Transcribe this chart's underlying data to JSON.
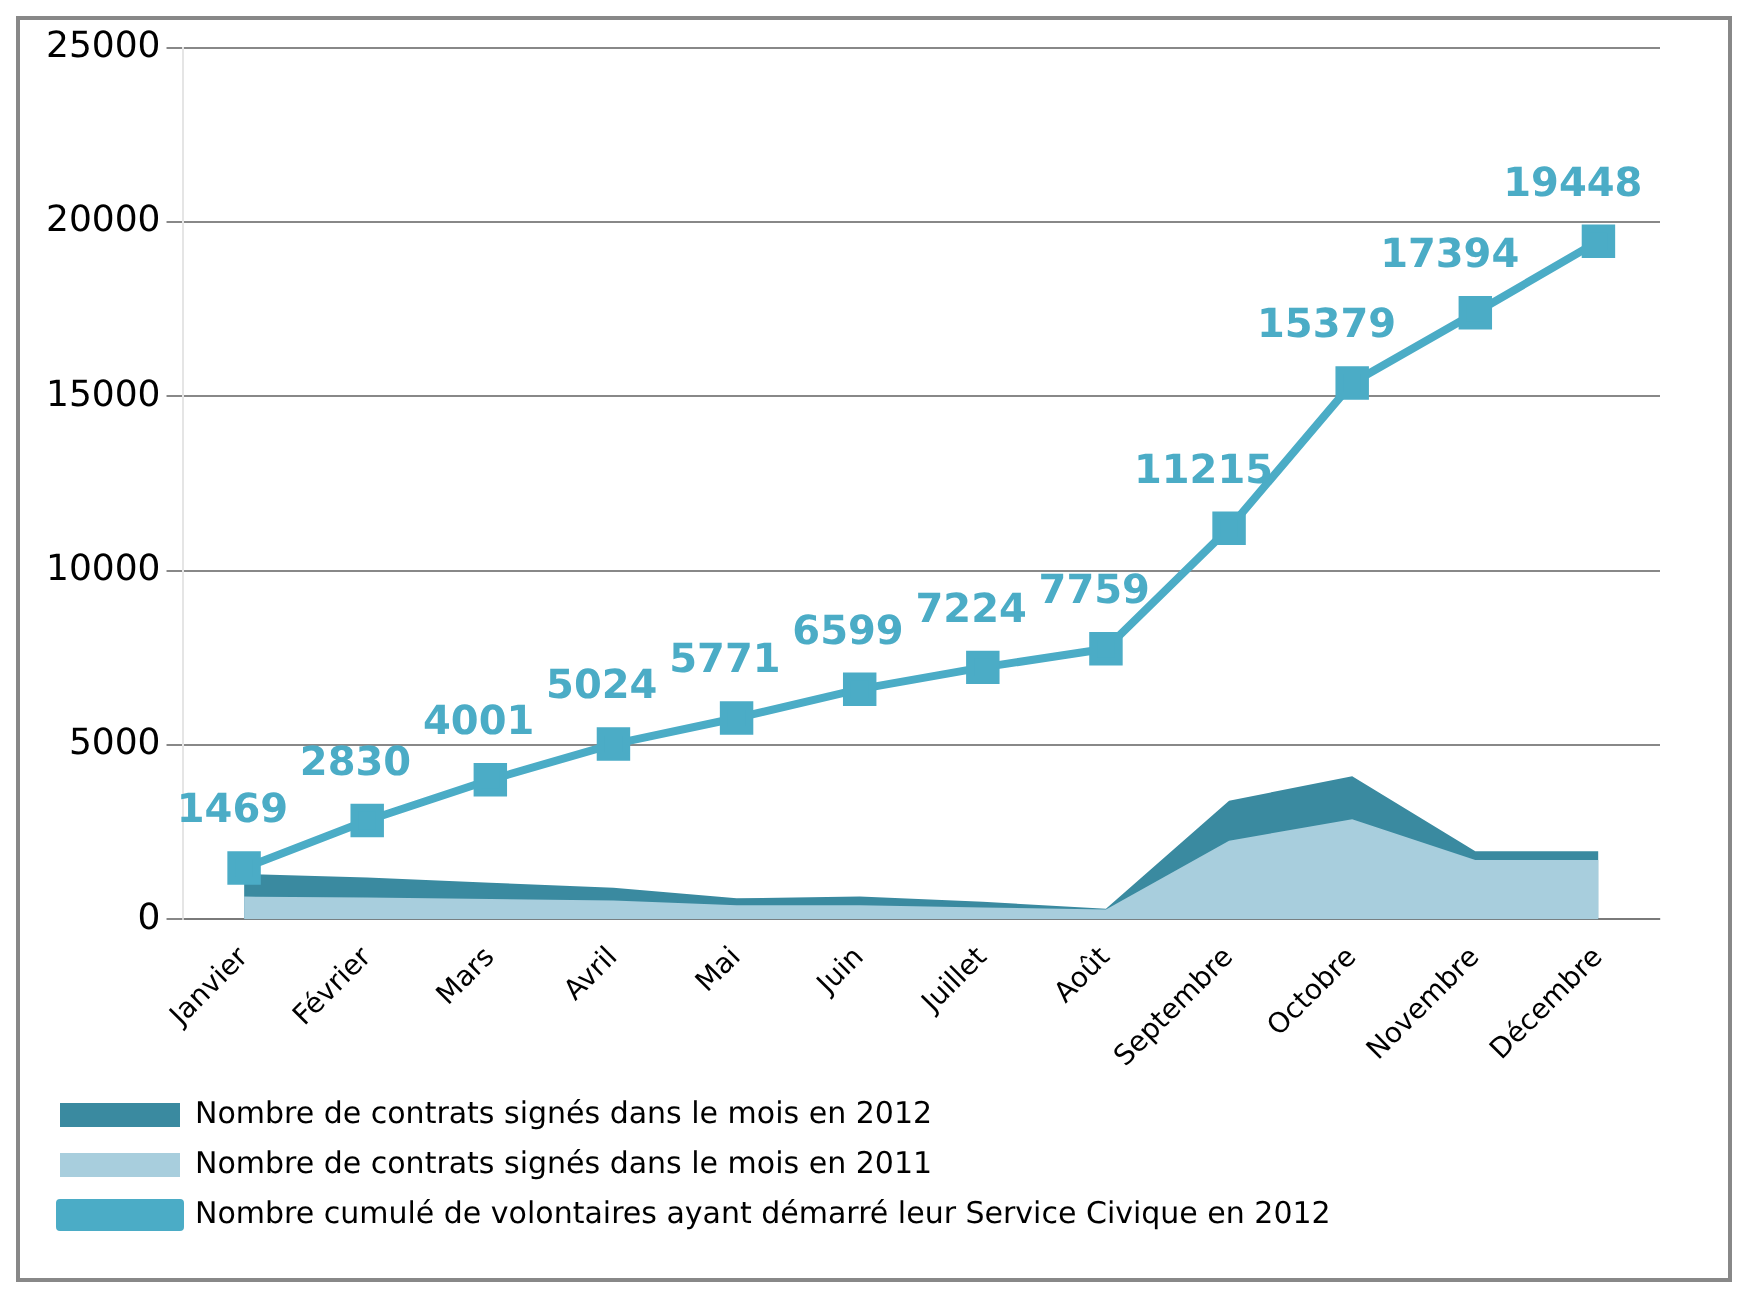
{
  "chart_data": {
    "type": "area",
    "categories": [
      "Janvier",
      "Février",
      "Mars",
      "Avril",
      "Mai",
      "Juin",
      "Juillet",
      "Août",
      "Septembre",
      "Octobre",
      "Novembre",
      "Décembre"
    ],
    "series": [
      {
        "name": "Nombre de contrats signés dans le mois en 2012",
        "color": "#3a8aa0",
        "values": [
          1300,
          1200,
          1050,
          900,
          600,
          650,
          500,
          300,
          3400,
          4100,
          1950,
          1950
        ]
      },
      {
        "name": "Nombre de contrats signés dans le mois en 2011",
        "color": "#a8cedd",
        "values": [
          650,
          620,
          580,
          540,
          400,
          400,
          340,
          280,
          2250,
          2870,
          1700,
          1700
        ]
      },
      {
        "name": "Nombre cumulé de volontaires ayant démarré leur Service Civique en 2012",
        "color": "#4bacc6",
        "type": "line",
        "marker": "square",
        "values": [
          1469,
          2830,
          4001,
          5024,
          5771,
          6599,
          7224,
          7759,
          11215,
          15379,
          17394,
          19448
        ],
        "value_labels": [
          "1469",
          "2830",
          "4001",
          "5024",
          "5771",
          "6599",
          "7224",
          "7759",
          "11215",
          "15379",
          "17394",
          "19448"
        ]
      }
    ],
    "ylim": [
      0,
      25000
    ],
    "yticks": [
      0,
      5000,
      10000,
      15000,
      20000,
      25000
    ],
    "grid": "y",
    "legend": "bottom"
  }
}
